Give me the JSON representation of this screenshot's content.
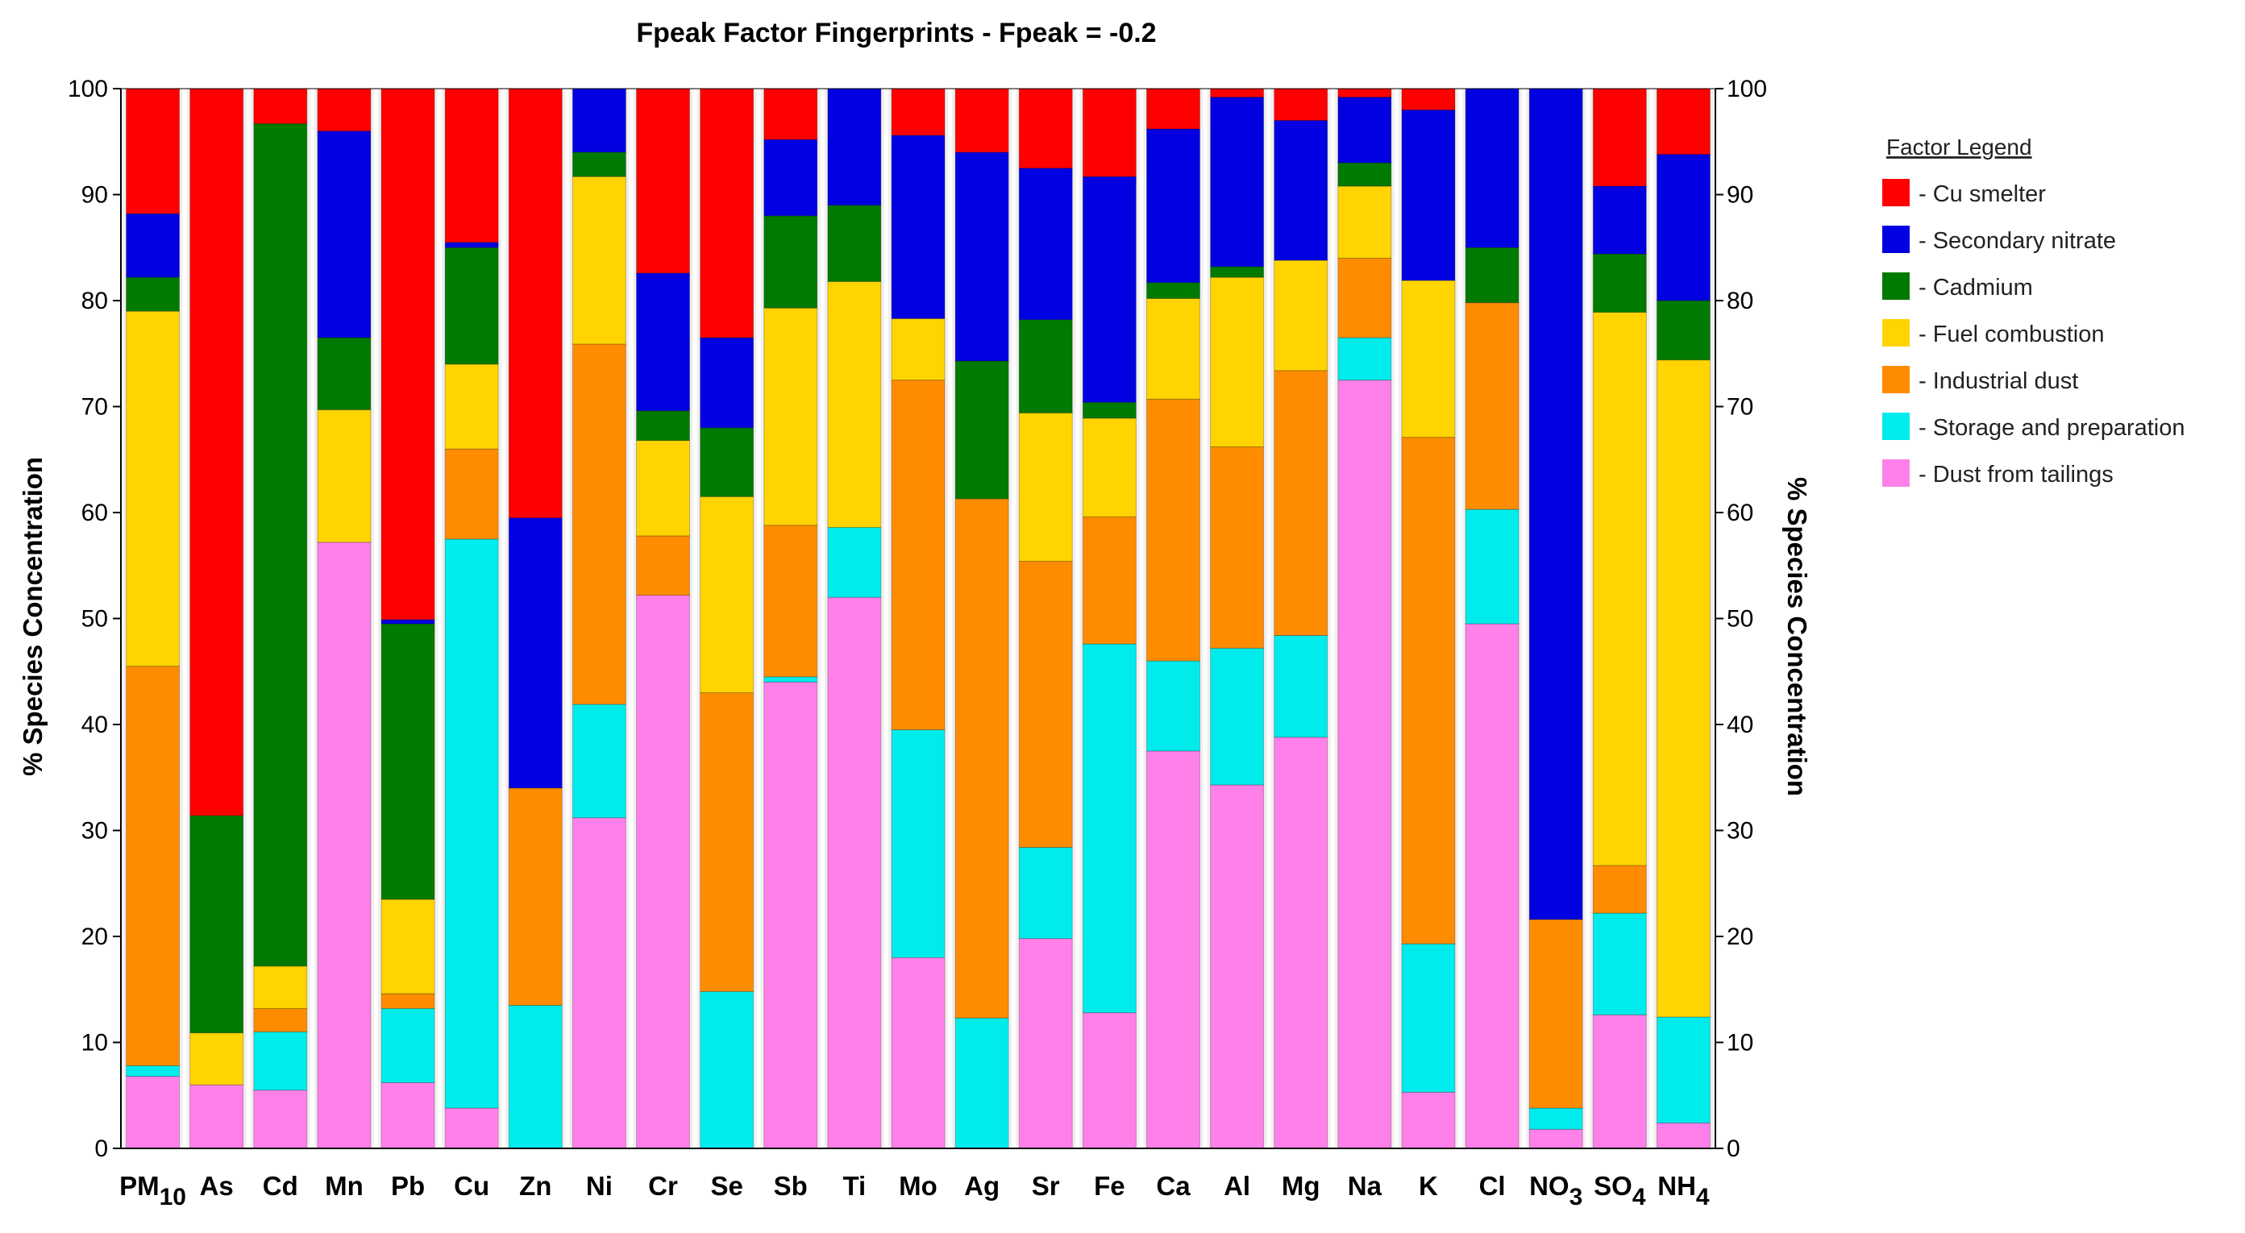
{
  "chart_data": {
    "type": "bar",
    "stacked": true,
    "title": "Fpeak Factor Fingerprints - Fpeak =  -0.2",
    "ylabel_left": "% Species Concentration",
    "ylabel_right": "% Species Concentration",
    "ylim": [
      0,
      100
    ],
    "yticks": [
      0,
      10,
      20,
      30,
      40,
      50,
      60,
      70,
      80,
      90,
      100
    ],
    "categories": [
      {
        "base": "PM",
        "sub": "10"
      },
      {
        "base": "As",
        "sub": ""
      },
      {
        "base": "Cd",
        "sub": ""
      },
      {
        "base": "Mn",
        "sub": ""
      },
      {
        "base": "Pb",
        "sub": ""
      },
      {
        "base": "Cu",
        "sub": ""
      },
      {
        "base": "Zn",
        "sub": ""
      },
      {
        "base": "Ni",
        "sub": ""
      },
      {
        "base": "Cr",
        "sub": ""
      },
      {
        "base": "Se",
        "sub": ""
      },
      {
        "base": "Sb",
        "sub": ""
      },
      {
        "base": "Ti",
        "sub": ""
      },
      {
        "base": "Mo",
        "sub": ""
      },
      {
        "base": "Ag",
        "sub": ""
      },
      {
        "base": "Sr",
        "sub": ""
      },
      {
        "base": "Fe",
        "sub": ""
      },
      {
        "base": "Ca",
        "sub": ""
      },
      {
        "base": "Al",
        "sub": ""
      },
      {
        "base": "Mg",
        "sub": ""
      },
      {
        "base": "Na",
        "sub": ""
      },
      {
        "base": "K",
        "sub": ""
      },
      {
        "base": "Cl",
        "sub": ""
      },
      {
        "base": "NO",
        "sub": "3"
      },
      {
        "base": "SO",
        "sub": "4"
      },
      {
        "base": "NH",
        "sub": "4"
      }
    ],
    "legend_title": "Factor Legend",
    "legend_position": "right",
    "series": [
      {
        "name": " - Dust from tailings",
        "color": "#ff80e8",
        "values": [
          6.8,
          6,
          5.5,
          57.2,
          6.2,
          3.8,
          0,
          31.2,
          52.2,
          0,
          44,
          52,
          18,
          0,
          19.8,
          12.8,
          37.5,
          34.3,
          38.8,
          72.5,
          5.3,
          49.5,
          1.8,
          12.6,
          2.4
        ]
      },
      {
        "name": " - Storage and preparation",
        "color": "#00ecec",
        "values": [
          1,
          0,
          5.5,
          0,
          7,
          53.7,
          13.5,
          10.7,
          0,
          14.8,
          0.5,
          6.6,
          21.5,
          12.3,
          8.6,
          34.8,
          8.5,
          12.9,
          9.6,
          4,
          14,
          10.8,
          2,
          9.6,
          10
        ]
      },
      {
        "name": " - Industrial dust",
        "color": "#ff8c00",
        "values": [
          37.7,
          0,
          2.2,
          0,
          1.4,
          8.5,
          20.5,
          34,
          5.6,
          28.2,
          14.3,
          0,
          33,
          49,
          27,
          12,
          24.7,
          19,
          25,
          7.5,
          47.8,
          19.5,
          17.8,
          4.5,
          0
        ]
      },
      {
        "name": " - Fuel combustion",
        "color": "#ffd400",
        "values": [
          33.5,
          4.9,
          4,
          12.5,
          8.9,
          8,
          0,
          15.8,
          9,
          18.5,
          20.5,
          23.2,
          5.8,
          0,
          14,
          9.3,
          9.5,
          16,
          10.4,
          6.8,
          14.8,
          0,
          0,
          52.2,
          62
        ]
      },
      {
        "name": " - Cadmium",
        "color": "#007a00",
        "values": [
          3.2,
          20.5,
          79.5,
          6.8,
          26,
          11,
          0,
          2.3,
          2.8,
          6.5,
          8.7,
          7.2,
          0,
          13,
          8.8,
          1.5,
          1.5,
          1,
          0,
          2.2,
          0,
          5.2,
          0,
          5.5,
          5.6
        ]
      },
      {
        "name": " - Secondary nitrate",
        "color": "#0000e0",
        "values": [
          6,
          0,
          0,
          19.5,
          0.4,
          0.5,
          25.5,
          6,
          13,
          8.5,
          7.2,
          11,
          17.3,
          19.7,
          14.3,
          21.3,
          14.5,
          16,
          13.2,
          6.2,
          16.1,
          15,
          78.4,
          6.4,
          13.8
        ]
      },
      {
        "name": " - Cu smelter",
        "color": "#ff0000",
        "values": [
          11.8,
          68.6,
          3.3,
          4,
          50.1,
          14.5,
          40.5,
          0,
          17.4,
          23.5,
          4.8,
          0,
          4.4,
          6,
          7.5,
          8.3,
          3.8,
          0.8,
          3,
          0.8,
          2,
          0,
          0,
          9.2,
          6.2
        ]
      }
    ],
    "legend_order": [
      6,
      5,
      4,
      3,
      2,
      1,
      0
    ]
  }
}
